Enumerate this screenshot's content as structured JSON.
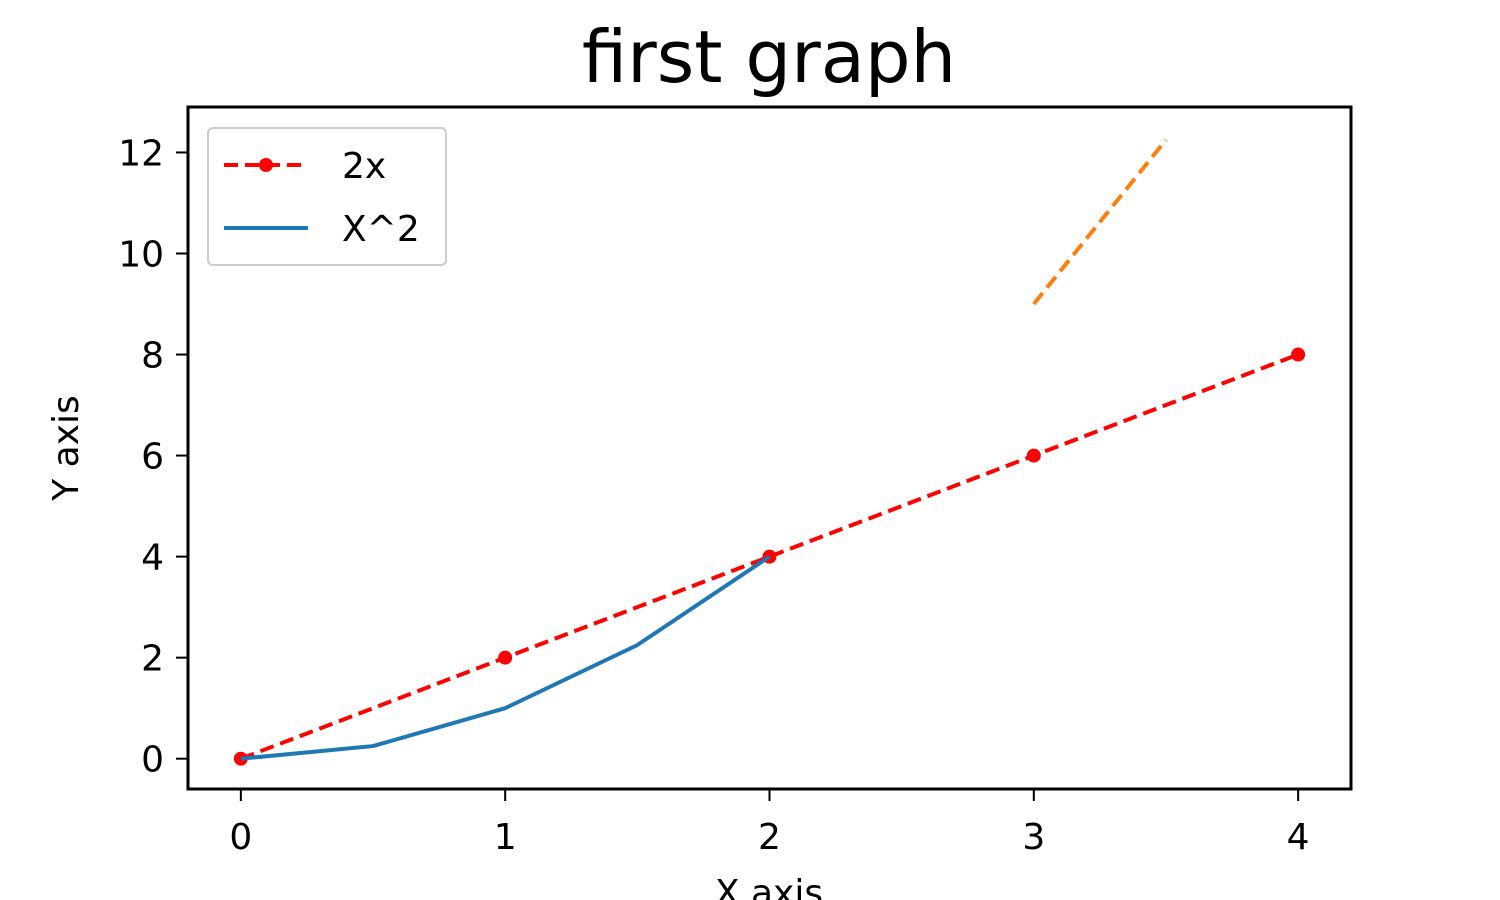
{
  "chart_data": {
    "type": "line",
    "title": "first graph",
    "xlabel": "X axis",
    "ylabel": "Y axis",
    "xlim": [
      -0.2,
      4.2
    ],
    "ylim": [
      -0.6,
      12.9
    ],
    "xticks": [
      0,
      1,
      2,
      3,
      4
    ],
    "yticks": [
      0,
      2,
      4,
      6,
      8,
      10,
      12
    ],
    "grid": false,
    "legend_position": "top-left",
    "series": [
      {
        "name": "2x",
        "color": "#ff0000",
        "style": "dashed",
        "marker": "circle",
        "x": [
          0,
          1,
          2,
          3,
          4
        ],
        "y": [
          0,
          2,
          4,
          6,
          8
        ]
      },
      {
        "name": "X^2",
        "color": "#1f77b4",
        "style": "solid",
        "marker": "none",
        "x": [
          0,
          0.5,
          1,
          1.5,
          2
        ],
        "y": [
          0,
          0.25,
          1,
          2.25,
          4
        ]
      },
      {
        "color": "#ff7f0e",
        "style": "dashed",
        "marker": "none",
        "x": [
          3,
          3.5
        ],
        "y": [
          9,
          12.25
        ]
      }
    ]
  }
}
